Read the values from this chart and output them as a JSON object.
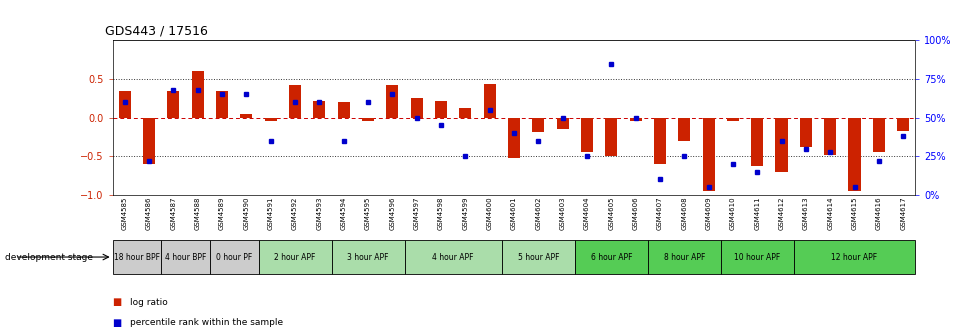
{
  "title": "GDS443 / 17516",
  "samples": [
    "GSM4585",
    "GSM4586",
    "GSM4587",
    "GSM4588",
    "GSM4589",
    "GSM4590",
    "GSM4591",
    "GSM4592",
    "GSM4593",
    "GSM4594",
    "GSM4595",
    "GSM4596",
    "GSM4597",
    "GSM4598",
    "GSM4599",
    "GSM4600",
    "GSM4601",
    "GSM4602",
    "GSM4603",
    "GSM4604",
    "GSM4605",
    "GSM4606",
    "GSM4607",
    "GSM4608",
    "GSM4609",
    "GSM4610",
    "GSM4611",
    "GSM4612",
    "GSM4613",
    "GSM4614",
    "GSM4615",
    "GSM4616",
    "GSM4617"
  ],
  "log_ratio": [
    0.35,
    -0.6,
    0.35,
    0.6,
    0.35,
    0.05,
    -0.05,
    0.42,
    0.22,
    0.2,
    -0.05,
    0.42,
    0.25,
    0.22,
    0.12,
    0.43,
    -0.52,
    -0.18,
    -0.15,
    -0.45,
    -0.5,
    -0.05,
    -0.6,
    -0.3,
    -0.95,
    -0.05,
    -0.62,
    -0.7,
    -0.38,
    -0.48,
    -0.95,
    -0.45,
    -0.17
  ],
  "percentile_rank": [
    60,
    22,
    68,
    68,
    65,
    65,
    35,
    60,
    60,
    35,
    60,
    65,
    50,
    45,
    25,
    55,
    40,
    35,
    50,
    25,
    85,
    50,
    10,
    25,
    5,
    20,
    15,
    35,
    30,
    28,
    5,
    22,
    38
  ],
  "stages": [
    {
      "label": "18 hour BPF",
      "start": 0,
      "end": 2,
      "color": "#cccccc"
    },
    {
      "label": "4 hour BPF",
      "start": 2,
      "end": 4,
      "color": "#cccccc"
    },
    {
      "label": "0 hour PF",
      "start": 4,
      "end": 6,
      "color": "#cccccc"
    },
    {
      "label": "2 hour APF",
      "start": 6,
      "end": 9,
      "color": "#aaddaa"
    },
    {
      "label": "3 hour APF",
      "start": 9,
      "end": 12,
      "color": "#aaddaa"
    },
    {
      "label": "4 hour APF",
      "start": 12,
      "end": 16,
      "color": "#aaddaa"
    },
    {
      "label": "5 hour APF",
      "start": 16,
      "end": 19,
      "color": "#aaddaa"
    },
    {
      "label": "6 hour APF",
      "start": 19,
      "end": 22,
      "color": "#55cc55"
    },
    {
      "label": "8 hour APF",
      "start": 22,
      "end": 25,
      "color": "#55cc55"
    },
    {
      "label": "10 hour APF",
      "start": 25,
      "end": 28,
      "color": "#55cc55"
    },
    {
      "label": "12 hour APF",
      "start": 28,
      "end": 33,
      "color": "#55cc55"
    }
  ],
  "ylim": [
    -1,
    1
  ],
  "yticks_left": [
    -1,
    -0.5,
    0,
    0.5
  ],
  "yticks_right": [
    0,
    25,
    50,
    75,
    100
  ],
  "bar_color": "#cc2200",
  "dot_color": "#0000cc",
  "zero_line_color": "#cc0000",
  "dotted_line_color": "#333333",
  "bg_color": "#ffffff"
}
